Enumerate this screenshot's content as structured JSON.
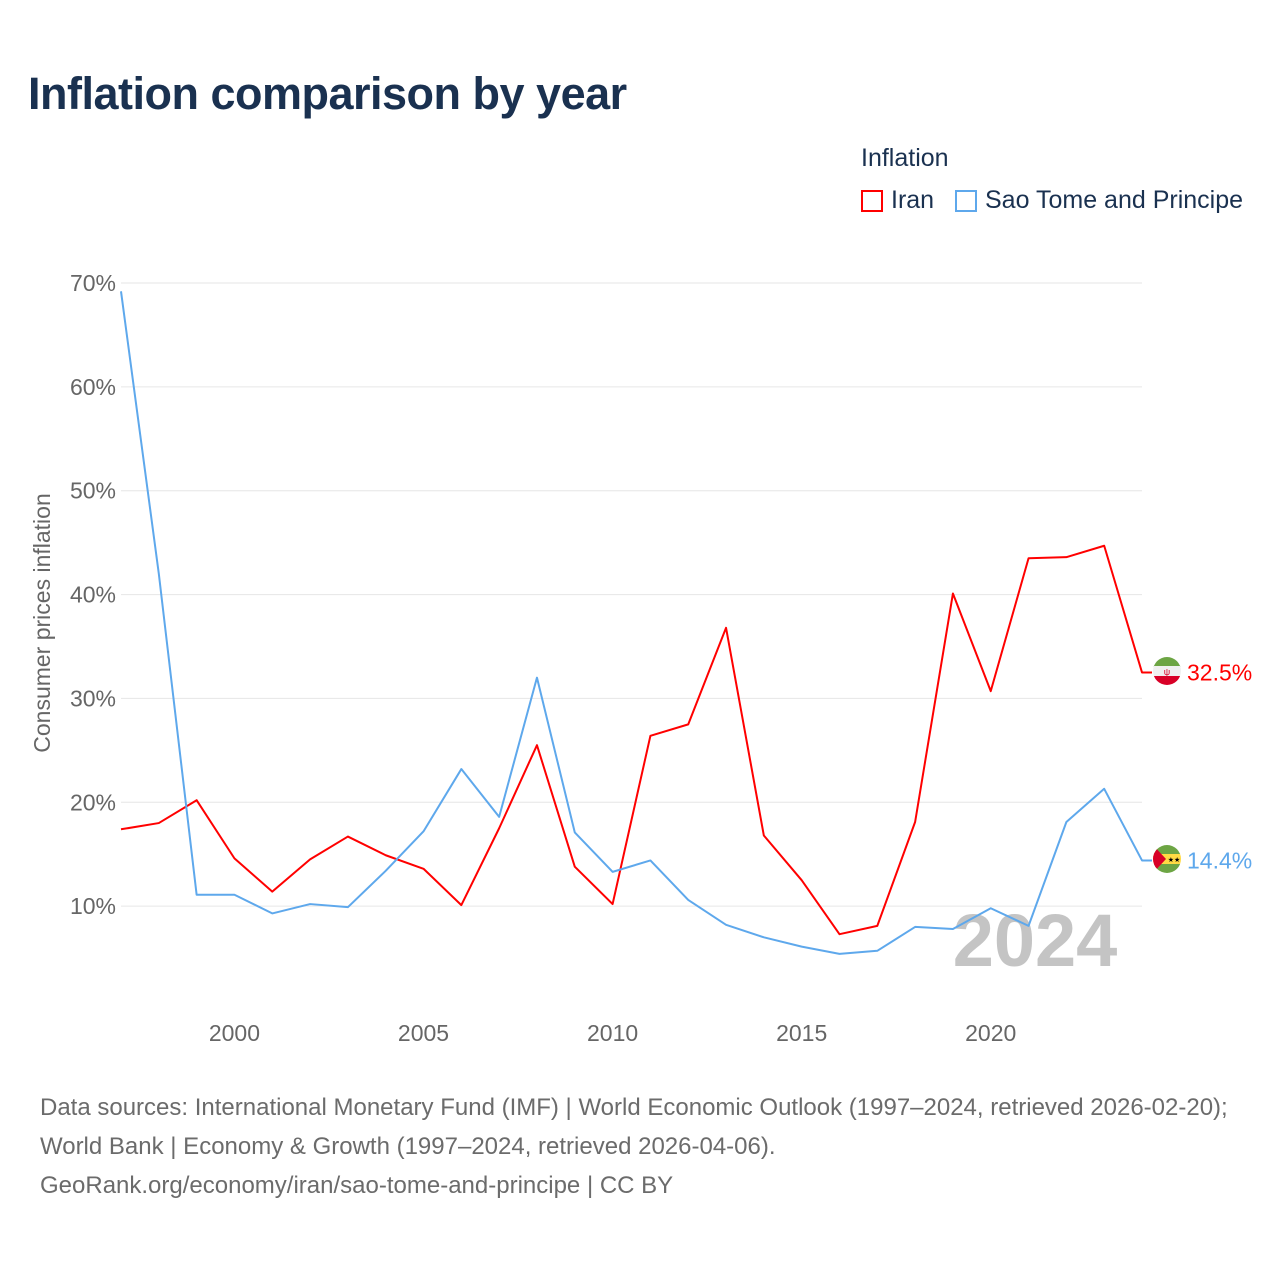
{
  "title": "Inflation comparison by year",
  "legend": {
    "title": "Inflation",
    "items": [
      {
        "name": "Iran",
        "color": "#ff0000"
      },
      {
        "name": "Sao Tome and Principe",
        "color": "#5ea8ec"
      }
    ]
  },
  "watermark_year": "2024",
  "footer": {
    "sources": "Data sources: International Monetary Fund (IMF) | World Economic Outlook (1997–2024, retrieved 2026-02-20); World Bank | Economy & Growth (1997–2024, retrieved 2026-04-06).",
    "link": "GeoRank.org/economy/iran/sao-tome-and-principe | CC BY"
  },
  "chart_data": {
    "type": "line",
    "title": "Inflation comparison by year",
    "xlabel": "",
    "ylabel": "Consumer prices inflation",
    "xlim": [
      1997,
      2024
    ],
    "ylim": [
      0,
      70
    ],
    "x_ticks": [
      2000,
      2005,
      2010,
      2015,
      2020
    ],
    "y_ticks": [
      10,
      20,
      30,
      40,
      50,
      60,
      70
    ],
    "y_tick_labels": [
      "10%",
      "20%",
      "30%",
      "40%",
      "50%",
      "60%",
      "70%"
    ],
    "grid": true,
    "legend_position": "top-right",
    "x": [
      1997,
      1998,
      1999,
      2000,
      2001,
      2002,
      2003,
      2004,
      2005,
      2006,
      2007,
      2008,
      2009,
      2010,
      2011,
      2012,
      2013,
      2014,
      2015,
      2016,
      2017,
      2018,
      2019,
      2020,
      2021,
      2022,
      2023,
      2024
    ],
    "series": [
      {
        "name": "Iran",
        "color": "#ff0000",
        "end_label": "32.5%",
        "values": [
          17.4,
          18.0,
          20.2,
          14.6,
          11.4,
          14.5,
          16.7,
          14.9,
          13.6,
          10.1,
          17.5,
          25.5,
          13.8,
          10.2,
          26.4,
          27.5,
          36.8,
          16.8,
          12.5,
          7.3,
          8.1,
          18.1,
          40.1,
          30.7,
          43.5,
          43.6,
          44.7,
          32.5
        ]
      },
      {
        "name": "Sao Tome and Principe",
        "color": "#5ea8ec",
        "end_label": "14.4%",
        "values": [
          69.2,
          42.0,
          11.1,
          11.1,
          9.3,
          10.2,
          9.9,
          13.4,
          17.2,
          23.2,
          18.6,
          32.0,
          17.1,
          13.3,
          14.4,
          10.6,
          8.2,
          7.0,
          6.1,
          5.4,
          5.7,
          8.0,
          7.8,
          9.8,
          8.1,
          18.1,
          21.3,
          14.4
        ]
      }
    ]
  }
}
